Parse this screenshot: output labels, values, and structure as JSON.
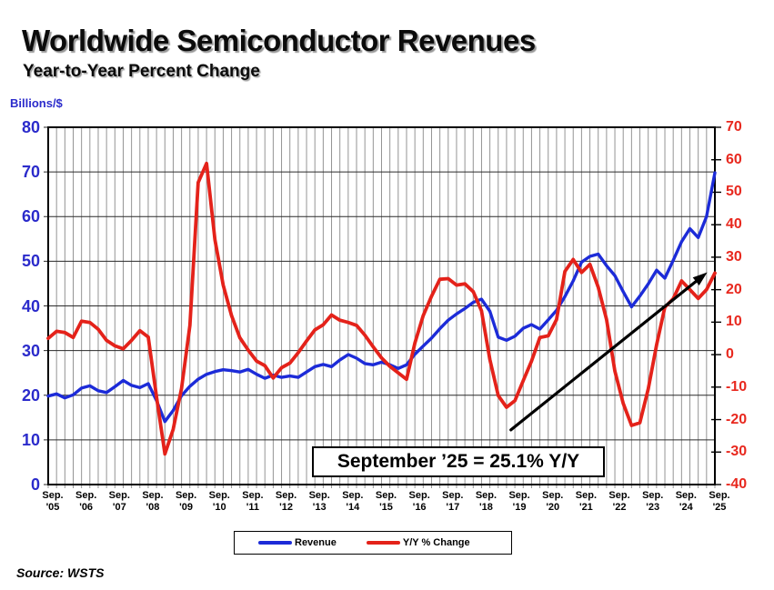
{
  "title": "Worldwide Semiconductor Revenues",
  "subtitle": "Year-to-Year Percent Change",
  "left_axis_unit": "Billions/$",
  "source": "Source: WSTS",
  "annotation": "September ’25 = 25.1% Y/Y",
  "legend": {
    "revenue_label": "Revenue",
    "yoy_label": "Y/Y % Change"
  },
  "colors": {
    "revenue_blue": "#1c2bd8",
    "yoy_red": "#e4221a",
    "axis_label_blue": "#2b2bcb",
    "axis_label_red": "#e8281e",
    "grid_vertical": "#949494",
    "grid_horizontal": "#2a2a2a",
    "axis_black": "#000000",
    "arrow_black": "#000000"
  },
  "chart_data": {
    "type": "line",
    "title": "Worldwide Semiconductor Revenues — Year-to-Year Percent Change",
    "x_interval_months": 3,
    "x": [
      "Sep '05",
      "Dec '05",
      "Mar '06",
      "Jun '06",
      "Sep '06",
      "Dec '06",
      "Mar '07",
      "Jun '07",
      "Sep '07",
      "Dec '07",
      "Mar '08",
      "Jun '08",
      "Sep '08",
      "Dec '08",
      "Mar '09",
      "Jun '09",
      "Sep '09",
      "Dec '09",
      "Mar '10",
      "Jun '10",
      "Sep '10",
      "Dec '10",
      "Mar '11",
      "Jun '11",
      "Sep '11",
      "Dec '11",
      "Mar '12",
      "Jun '12",
      "Sep '12",
      "Dec '12",
      "Mar '13",
      "Jun '13",
      "Sep '13",
      "Dec '13",
      "Mar '14",
      "Jun '14",
      "Sep '14",
      "Dec '14",
      "Mar '15",
      "Jun '15",
      "Sep '15",
      "Dec '15",
      "Mar '16",
      "Jun '16",
      "Sep '16",
      "Dec '16",
      "Mar '17",
      "Jun '17",
      "Sep '17",
      "Dec '17",
      "Mar '18",
      "Jun '18",
      "Sep '18",
      "Dec '18",
      "Mar '19",
      "Jun '19",
      "Sep '19",
      "Dec '19",
      "Mar '20",
      "Jun '20",
      "Sep '20",
      "Dec '20",
      "Mar '21",
      "Jun '21",
      "Sep '21",
      "Dec '21",
      "Mar '22",
      "Jun '22",
      "Sep '22",
      "Dec '22",
      "Mar '23",
      "Jun '23",
      "Sep '23",
      "Dec '23",
      "Mar '24",
      "Jun '24",
      "Sep '24",
      "Dec '24",
      "Mar '25",
      "Jun '25",
      "Sep '25"
    ],
    "x_tick_month": "Sep.",
    "x_tick_years": [
      "'05",
      "'06",
      "'07",
      "'08",
      "'09",
      "'10",
      "'11",
      "'12",
      "'13",
      "'14",
      "'15",
      "'16",
      "'17",
      "'18",
      "'19",
      "'20",
      "'21",
      "'22",
      "'23",
      "'24",
      "'25"
    ],
    "left_axis": {
      "min": 0,
      "max": 80,
      "step": 10,
      "ticks": [
        80,
        70,
        60,
        50,
        40,
        30,
        20,
        10,
        0
      ],
      "label": "Billions/$"
    },
    "right_axis": {
      "min": -40,
      "max": 70,
      "step": 10,
      "ticks": [
        70,
        60,
        50,
        40,
        30,
        20,
        10,
        0,
        -10,
        -20,
        -30,
        -40
      ],
      "unit": "percent"
    },
    "grid": {
      "vertical": "quarterly",
      "horizontal": "every 10 (left scale)"
    },
    "legend_position": "bottom",
    "series": [
      {
        "name": "Revenue",
        "axis": "left",
        "color": "#1c2bd8",
        "width": 3.4,
        "values": [
          19.8,
          20.3,
          19.4,
          20.1,
          21.6,
          22.1,
          21.0,
          20.6,
          21.9,
          23.3,
          22.2,
          21.7,
          22.6,
          18.8,
          14.1,
          16.6,
          19.9,
          22.0,
          23.6,
          24.7,
          25.3,
          25.7,
          25.5,
          25.2,
          25.8,
          24.7,
          23.8,
          24.5,
          24.0,
          24.3,
          24.0,
          25.2,
          26.4,
          26.9,
          26.4,
          27.9,
          29.1,
          28.3,
          27.1,
          26.8,
          27.4,
          26.8,
          26.0,
          26.8,
          29.2,
          31.0,
          32.8,
          34.9,
          36.8,
          38.2,
          39.4,
          40.8,
          41.5,
          38.8,
          33.0,
          32.3,
          33.2,
          35.0,
          35.8,
          34.8,
          36.9,
          39.0,
          42.1,
          45.6,
          49.8,
          51.1,
          51.6,
          49.0,
          46.8,
          43.2,
          39.8,
          42.2,
          44.9,
          48.0,
          46.2,
          50.2,
          54.4,
          57.3,
          55.3,
          60.0,
          69.8
        ]
      },
      {
        "name": "Y/Y % Change",
        "axis": "right",
        "color": "#e4221a",
        "width": 3.8,
        "values": [
          5.0,
          7.2,
          6.8,
          5.3,
          10.3,
          9.9,
          7.8,
          4.4,
          2.7,
          1.8,
          4.4,
          7.4,
          5.4,
          -13.0,
          -30.6,
          -23.0,
          -10.4,
          9.0,
          53.0,
          58.9,
          35.4,
          21.4,
          12.0,
          5.2,
          1.4,
          -2.0,
          -3.4,
          -7.2,
          -4.0,
          -2.6,
          0.6,
          4.2,
          7.6,
          9.2,
          12.2,
          10.6,
          9.9,
          9.0,
          6.0,
          2.4,
          -1.0,
          -3.6,
          -5.6,
          -7.6,
          3.6,
          12.0,
          18.0,
          23.2,
          23.4,
          21.4,
          21.8,
          19.4,
          13.5,
          -1.5,
          -12.6,
          -16.2,
          -14.2,
          -8.0,
          -2.0,
          5.3,
          5.8,
          10.8,
          25.6,
          29.3,
          25.3,
          27.8,
          20.8,
          10.8,
          -5.0,
          -15.0,
          -21.8,
          -21.0,
          -10.6,
          3.0,
          14.6,
          17.2,
          22.7,
          20.0,
          17.3,
          20.0,
          25.1
        ]
      }
    ],
    "annotations": [
      {
        "text": "September ’25 = 25.1% Y/Y",
        "style": "boxed callout at bottom of plot"
      }
    ],
    "arrow": {
      "x1f": 0.694,
      "y1f": 0.847,
      "x2f": 0.9886,
      "y2f": 0.406,
      "width": 3.2
    }
  }
}
